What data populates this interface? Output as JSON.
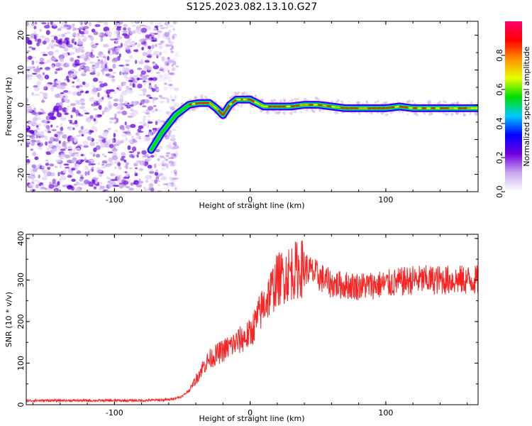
{
  "title": "S125.2023.082.13.10.G27",
  "chart_data": [
    {
      "type": "heatmap",
      "xlabel": "Height of straight line (km)",
      "ylabel": "Frequency (Hz)",
      "xlim": [
        -165,
        168
      ],
      "ylim": [
        -25,
        24
      ],
      "x_ticks": [
        "-100",
        "0",
        "100"
      ],
      "y_ticks": [
        "-20",
        "-10",
        "0",
        "10",
        "20"
      ],
      "colorbar": {
        "label": "Normalized spectral amplitude",
        "range": [
          0,
          1
        ],
        "ticks": [
          "0.0",
          "0.2",
          "0.4",
          "0.6",
          "0.8"
        ],
        "colors": [
          "#ffffff",
          "#c8a8f0",
          "#7000e0",
          "#0000ff",
          "#00c8ff",
          "#00e000",
          "#e8ff00",
          "#ff9000",
          "#ff0000",
          "#ff0070"
        ]
      },
      "noise_region": {
        "x_start": -165,
        "x_end": -60
      },
      "ridge": {
        "x": [
          -73,
          -65,
          -55,
          -45,
          -38,
          -30,
          -25,
          -20,
          -15,
          -10,
          -5,
          0,
          5,
          10,
          20,
          30,
          40,
          50,
          60,
          70,
          80,
          90,
          100,
          110,
          120,
          130,
          140,
          150,
          160,
          168
        ],
        "y": [
          -13,
          -8,
          -3,
          0,
          0.5,
          0.5,
          -1,
          -3,
          0,
          1.5,
          1.5,
          1.5,
          0.5,
          -0.5,
          -0.5,
          -0.5,
          0,
          0,
          -0.5,
          -1,
          -1,
          -1,
          -1,
          -0.5,
          -1,
          -1,
          -1,
          -1,
          -1,
          -1
        ]
      }
    },
    {
      "type": "line",
      "xlabel": "Height of straight line (km)",
      "ylabel": "SNR (10 * v/v)",
      "xlim": [
        -165,
        168
      ],
      "ylim": [
        0,
        410
      ],
      "x_ticks": [
        "-100",
        "0",
        "100"
      ],
      "y_ticks": [
        "0",
        "100",
        "200",
        "300",
        "400"
      ],
      "color": "#ff2020",
      "trend": {
        "x": [
          -165,
          -120,
          -80,
          -60,
          -50,
          -45,
          -40,
          -35,
          -30,
          -20,
          -10,
          0,
          10,
          20,
          30,
          40,
          50,
          60,
          80,
          100,
          120,
          140,
          160,
          168
        ],
        "y": [
          10,
          10,
          10,
          12,
          20,
          35,
          60,
          90,
          110,
          130,
          150,
          170,
          240,
          300,
          320,
          330,
          310,
          290,
          285,
          290,
          300,
          300,
          300,
          300
        ]
      }
    }
  ]
}
